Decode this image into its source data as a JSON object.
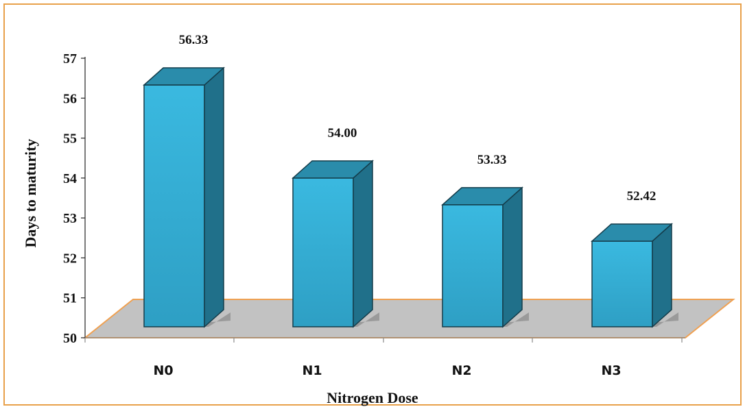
{
  "chart_data": {
    "type": "bar",
    "title": "",
    "xlabel": "Nitrogen Dose",
    "ylabel": "Days to maturity",
    "categories": [
      "N0",
      "N1",
      "N2",
      "N3"
    ],
    "values": [
      56.33,
      54.0,
      53.33,
      52.42
    ],
    "value_labels": [
      "56.33",
      "54.00",
      "53.33",
      "52.42"
    ],
    "ylim": [
      50,
      57
    ],
    "yticks": [
      "50",
      "51",
      "52",
      "53",
      "54",
      "55",
      "56",
      "57"
    ],
    "grid": false,
    "legend": "none",
    "colors": {
      "bar_front": "#35b1d8",
      "bar_side": "#20708a",
      "bar_top": "#2a8cab",
      "floor": "#c2c2c2",
      "floor_edge": "#f0a050",
      "frame": "#e8a04a"
    }
  }
}
